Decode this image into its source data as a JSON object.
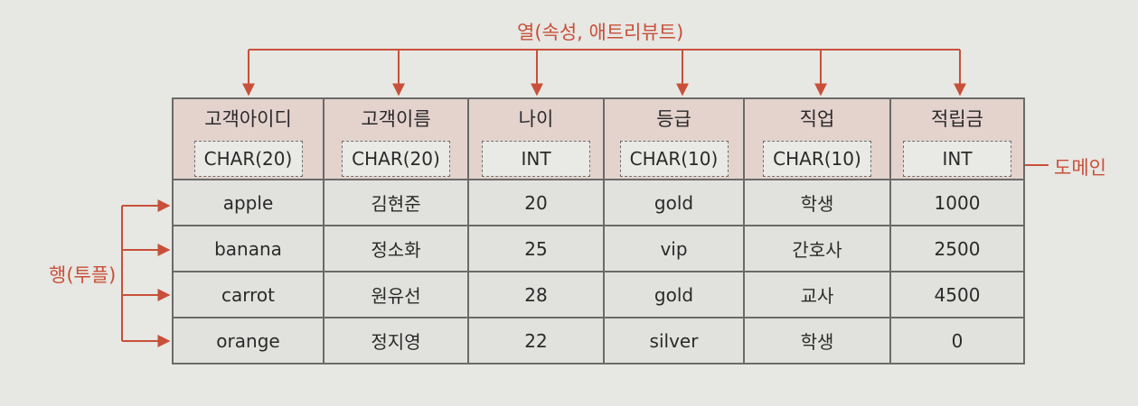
{
  "column_label": "열(속성, 애트리뷰트)",
  "row_label": "행(투플)",
  "domain_label": "도메인",
  "columns": [
    {
      "name": "고객아이디",
      "type": "CHAR(20)"
    },
    {
      "name": "고객이름",
      "type": "CHAR(20)"
    },
    {
      "name": "나이",
      "type": "INT"
    },
    {
      "name": "등급",
      "type": "CHAR(10)"
    },
    {
      "name": "직업",
      "type": "CHAR(10)"
    },
    {
      "name": "적립금",
      "type": "INT"
    }
  ],
  "rows": [
    [
      "apple",
      "김현준",
      "20",
      "gold",
      "학생",
      "1000"
    ],
    [
      "banana",
      "정소화",
      "25",
      "vip",
      "간호사",
      "2500"
    ],
    [
      "carrot",
      "원유선",
      "28",
      "gold",
      "교사",
      "4500"
    ],
    [
      "orange",
      "정지영",
      "22",
      "silver",
      "학생",
      "0"
    ]
  ],
  "colors": {
    "annotation": "#c8503a",
    "header_bg": "#e4d2cd",
    "body_bg": "#e1e1de"
  }
}
